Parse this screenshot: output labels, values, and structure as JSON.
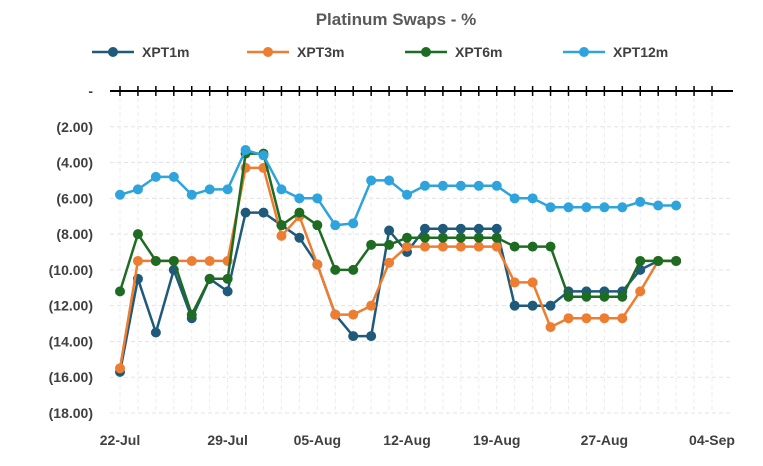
{
  "chart_data": {
    "type": "line",
    "title": "Platinum Swaps - %",
    "xlabel": "",
    "ylabel": "",
    "ylim": [
      -18,
      0
    ],
    "y_ticks": [
      {
        "value": 0,
        "label": "-"
      },
      {
        "value": -2,
        "label": "(2.00)"
      },
      {
        "value": -4,
        "label": "(4.00)"
      },
      {
        "value": -6,
        "label": "(6.00)"
      },
      {
        "value": -8,
        "label": "(8.00)"
      },
      {
        "value": -10,
        "label": "(10.00)"
      },
      {
        "value": -12,
        "label": "(12.00)"
      },
      {
        "value": -14,
        "label": "(14.00)"
      },
      {
        "value": -16,
        "label": "(16.00)"
      },
      {
        "value": -18,
        "label": "(18.00)"
      }
    ],
    "x_ticks": [
      "22-Jul",
      "29-Jul",
      "05-Aug",
      "12-Aug",
      "19-Aug",
      "27-Aug",
      "04-Sep"
    ],
    "grid": true,
    "legend_position": "top",
    "x": [
      "22-Jul",
      "23-Jul",
      "24-Jul",
      "25-Jul",
      "26-Jul",
      "28-Jul",
      "29-Jul",
      "30-Jul",
      "31-Jul",
      "01-Aug",
      "02-Aug",
      "05-Aug",
      "06-Aug",
      "07-Aug",
      "08-Aug",
      "09-Aug",
      "12-Aug",
      "13-Aug",
      "14-Aug",
      "15-Aug",
      "16-Aug",
      "19-Aug",
      "20-Aug",
      "21-Aug",
      "22-Aug",
      "23-Aug",
      "26-Aug",
      "27-Aug",
      "28-Aug",
      "29-Aug",
      "30-Aug",
      "02-Sep",
      "03-Sep",
      "04-Sep"
    ],
    "series": [
      {
        "name": "XPT1m",
        "color": "#1f5a7a",
        "values": [
          -15.7,
          -10.5,
          -13.5,
          -10.0,
          -12.7,
          -10.5,
          -11.2,
          -6.8,
          -6.8,
          -7.5,
          -8.2,
          -9.7,
          -12.5,
          -13.7,
          -13.7,
          -7.8,
          -9.0,
          -7.7,
          -7.7,
          -7.7,
          -7.7,
          -7.7,
          -12.0,
          -12.0,
          -12.0,
          -11.2,
          -11.2,
          -11.2,
          -11.2,
          -10.0,
          -9.5,
          -9.5,
          null,
          null
        ]
      },
      {
        "name": "XPT3m",
        "color": "#ed7d31",
        "values": [
          -15.5,
          -9.5,
          -9.5,
          -9.5,
          -9.5,
          -9.5,
          -9.5,
          -4.3,
          -4.3,
          -8.1,
          -7.0,
          -9.7,
          -12.5,
          -12.5,
          -12.0,
          -9.6,
          -8.7,
          -8.7,
          -8.7,
          -8.7,
          -8.7,
          -8.7,
          -10.7,
          -10.7,
          -13.2,
          -12.7,
          -12.7,
          -12.7,
          -12.7,
          -11.2,
          -9.5,
          -9.5,
          null,
          null
        ]
      },
      {
        "name": "XPT6m",
        "color": "#1e6b22",
        "values": [
          -11.2,
          -8.0,
          -9.5,
          -9.5,
          -12.5,
          -10.5,
          -10.5,
          -3.5,
          -3.5,
          -7.5,
          -6.8,
          -7.5,
          -10.0,
          -10.0,
          -8.6,
          -8.6,
          -8.2,
          -8.2,
          -8.2,
          -8.2,
          -8.2,
          -8.2,
          -8.7,
          -8.7,
          -8.7,
          -11.5,
          -11.5,
          -11.5,
          -11.5,
          -9.5,
          -9.5,
          -9.5,
          null,
          null
        ]
      },
      {
        "name": "XPT12m",
        "color": "#2ea3dc",
        "values": [
          -5.8,
          -5.5,
          -4.8,
          -4.8,
          -5.8,
          -5.5,
          -5.5,
          -3.3,
          -3.6,
          -5.5,
          -6.0,
          -6.0,
          -7.5,
          -7.4,
          -5.0,
          -5.0,
          -5.8,
          -5.3,
          -5.3,
          -5.3,
          -5.3,
          -5.3,
          -6.0,
          -6.0,
          -6.5,
          -6.5,
          -6.5,
          -6.5,
          -6.5,
          -6.2,
          -6.4,
          -6.4,
          null,
          null
        ]
      }
    ]
  }
}
